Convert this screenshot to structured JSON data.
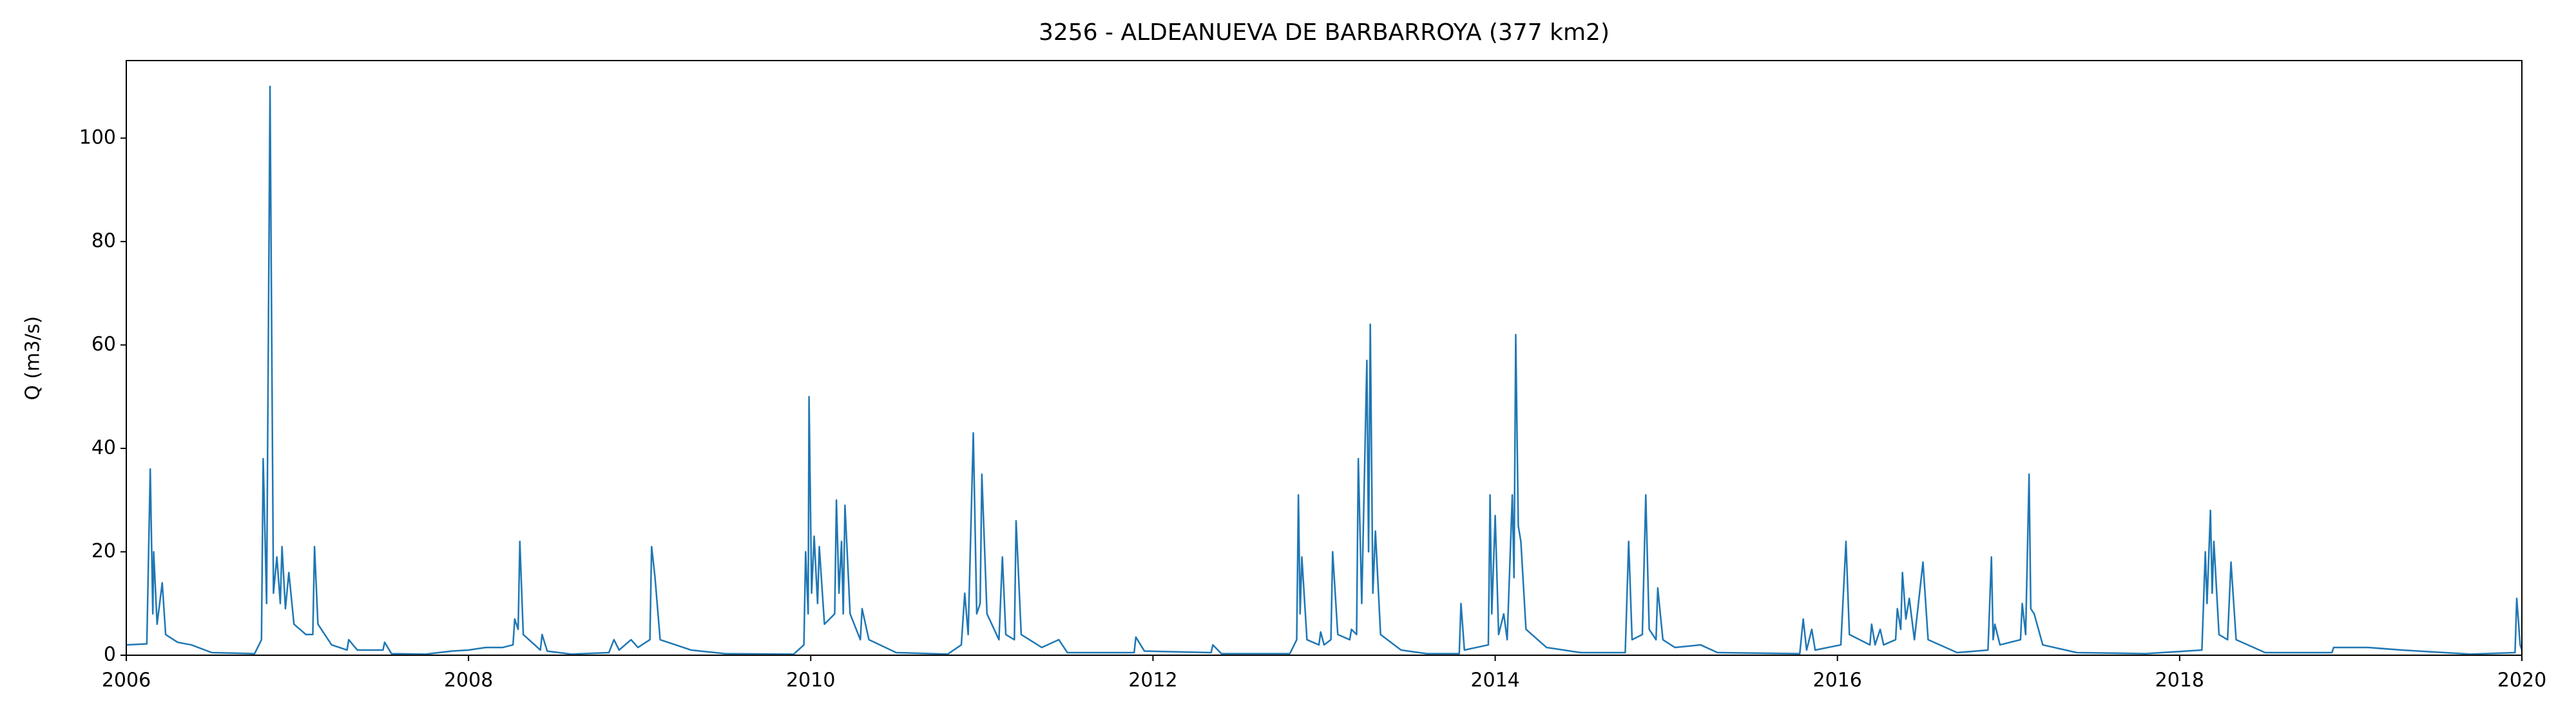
{
  "chart_data": {
    "type": "line",
    "title": "3256 - ALDEANUEVA DE BARBARROYA (377 km2)",
    "ylabel": "Q (m3/s)",
    "color": "#1f77b4",
    "xlim": [
      2006,
      2020
    ],
    "xticks": [
      2006,
      2008,
      2010,
      2012,
      2014,
      2016,
      2018,
      2020
    ],
    "ylim": [
      0,
      115
    ],
    "yticks": [
      0,
      20,
      40,
      60,
      80,
      100
    ],
    "grid": false,
    "x": [
      2006.0,
      2006.12,
      2006.14,
      2006.155,
      2006.16,
      2006.18,
      2006.21,
      2006.23,
      2006.3,
      2006.38,
      2006.5,
      2006.75,
      2006.79,
      2006.8,
      2006.82,
      2006.84,
      2006.86,
      2006.88,
      2006.9,
      2006.91,
      2006.93,
      2006.95,
      2006.98,
      2007.05,
      2007.09,
      2007.1,
      2007.12,
      2007.2,
      2007.29,
      2007.3,
      2007.35,
      2007.5,
      2007.51,
      2007.55,
      2007.75,
      2007.9,
      2008.0,
      2008.1,
      2008.2,
      2008.26,
      2008.27,
      2008.29,
      2008.3,
      2008.32,
      2008.42,
      2008.43,
      2008.46,
      2008.6,
      2008.82,
      2008.85,
      2008.88,
      2008.95,
      2008.99,
      2009.06,
      2009.07,
      2009.09,
      2009.12,
      2009.3,
      2009.5,
      2009.9,
      2009.96,
      2009.97,
      2009.985,
      2009.99,
      2010.005,
      2010.02,
      2010.04,
      2010.05,
      2010.08,
      2010.14,
      2010.15,
      2010.165,
      2010.18,
      2010.19,
      2010.2,
      2010.23,
      2010.29,
      2010.3,
      2010.34,
      2010.5,
      2010.8,
      2010.88,
      2010.9,
      2010.92,
      2010.95,
      2010.97,
      2010.99,
      2011.0,
      2011.03,
      2011.1,
      2011.12,
      2011.14,
      2011.19,
      2011.2,
      2011.23,
      2011.35,
      2011.45,
      2011.5,
      2011.89,
      2011.9,
      2011.95,
      2012.34,
      2012.35,
      2012.4,
      2012.8,
      2012.84,
      2012.85,
      2012.86,
      2012.87,
      2012.9,
      2012.97,
      2012.98,
      2013.0,
      2013.04,
      2013.05,
      2013.08,
      2013.15,
      2013.16,
      2013.19,
      2013.2,
      2013.22,
      2013.25,
      2013.26,
      2013.27,
      2013.285,
      2013.3,
      2013.33,
      2013.45,
      2013.6,
      2013.79,
      2013.8,
      2013.82,
      2013.96,
      2013.97,
      2013.98,
      2014.0,
      2014.02,
      2014.05,
      2014.07,
      2014.1,
      2014.11,
      2014.12,
      2014.135,
      2014.15,
      2014.18,
      2014.3,
      2014.5,
      2014.76,
      2014.78,
      2014.8,
      2014.86,
      2014.88,
      2014.9,
      2014.94,
      2014.95,
      2014.98,
      2015.05,
      2015.2,
      2015.3,
      2015.78,
      2015.8,
      2015.82,
      2015.85,
      2015.87,
      2016.02,
      2016.05,
      2016.07,
      2016.19,
      2016.2,
      2016.22,
      2016.25,
      2016.27,
      2016.34,
      2016.35,
      2016.37,
      2016.38,
      2016.4,
      2016.42,
      2016.45,
      2016.5,
      2016.53,
      2016.7,
      2016.88,
      2016.9,
      2016.91,
      2016.92,
      2016.95,
      2017.07,
      2017.08,
      2017.1,
      2017.12,
      2017.13,
      2017.15,
      2017.2,
      2017.4,
      2017.8,
      2018.13,
      2018.15,
      2018.16,
      2018.18,
      2018.19,
      2018.2,
      2018.23,
      2018.28,
      2018.3,
      2018.33,
      2018.5,
      2018.89,
      2018.9,
      2019.1,
      2019.3,
      2019.7,
      2019.96,
      2019.97,
      2019.99,
      2020.0
    ],
    "values": [
      2,
      2.2,
      36,
      8,
      20,
      6,
      14,
      4,
      2.5,
      2,
      0.5,
      0.3,
      3,
      38,
      10,
      110,
      12,
      19,
      10,
      21,
      9,
      16,
      6,
      4,
      4,
      21,
      6,
      2,
      1,
      3,
      1,
      1,
      2.5,
      0.3,
      0.2,
      0.8,
      1,
      1.5,
      1.5,
      2,
      7,
      5,
      22,
      4,
      1,
      4,
      0.8,
      0.2,
      0.5,
      3,
      1,
      3,
      1.5,
      3,
      21,
      15,
      3,
      1,
      0.3,
      0.2,
      2,
      20,
      8,
      50,
      12,
      23,
      10,
      21,
      6,
      8,
      30,
      12,
      22,
      8,
      29,
      8,
      3,
      9,
      3,
      0.5,
      0.2,
      2,
      12,
      4,
      43,
      8,
      10,
      35,
      8,
      3,
      19,
      4,
      3,
      26,
      4,
      1.5,
      3,
      0.5,
      0.5,
      3.5,
      0.8,
      0.5,
      2,
      0.3,
      0.3,
      3,
      31,
      8,
      19,
      3,
      2,
      4.5,
      2,
      3,
      20,
      4,
      3,
      5,
      4,
      38,
      10,
      57,
      20,
      64,
      12,
      24,
      4,
      1,
      0.3,
      0.3,
      10,
      1,
      2,
      31,
      8,
      27,
      4,
      8,
      3,
      31,
      15,
      62,
      25,
      22,
      5,
      1.5,
      0.5,
      0.5,
      22,
      3,
      4,
      31,
      5,
      3,
      13,
      3,
      1.5,
      2,
      0.5,
      0.3,
      7,
      1,
      5,
      1,
      2,
      22,
      4,
      2,
      6,
      2,
      5,
      2,
      3,
      9,
      5,
      16,
      7,
      11,
      3,
      18,
      3,
      0.5,
      1,
      19,
      3,
      6,
      2,
      3,
      10,
      4,
      35,
      9,
      8,
      2,
      0.5,
      0.3,
      1,
      20,
      10,
      28,
      12,
      22,
      4,
      3,
      18,
      3,
      0.5,
      0.5,
      1.5,
      1.5,
      1,
      0.2,
      0.5,
      11,
      2,
      1
    ]
  }
}
